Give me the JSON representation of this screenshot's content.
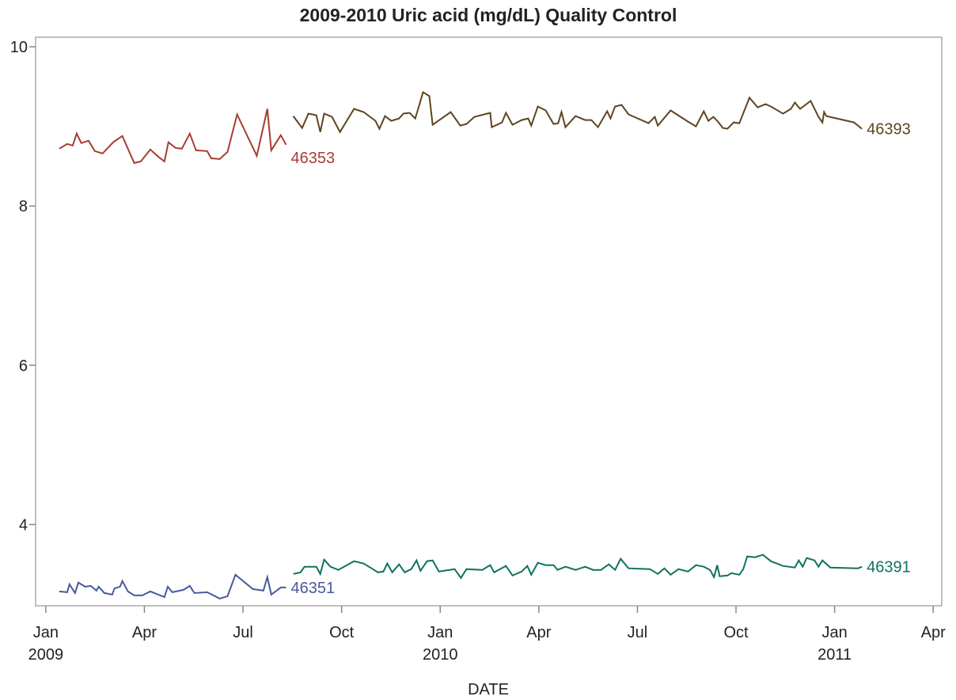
{
  "chart_data": {
    "type": "line",
    "title": "2009-2010 Uric acid (mg/dL) Quality Control",
    "x_label": "DATE",
    "xlim": [
      -0.31,
      27.26
    ],
    "ylim": [
      2.98,
      10.12
    ],
    "xticks": [
      {
        "value": 0,
        "label": "Jan",
        "year": "2009"
      },
      {
        "value": 3,
        "label": "Apr"
      },
      {
        "value": 6,
        "label": "Jul"
      },
      {
        "value": 9,
        "label": "Oct"
      },
      {
        "value": 12,
        "label": "Jan",
        "year": "2010"
      },
      {
        "value": 15,
        "label": "Apr"
      },
      {
        "value": 18,
        "label": "Jul"
      },
      {
        "value": 21,
        "label": "Oct"
      },
      {
        "value": 24,
        "label": "Jan",
        "year": "2011"
      },
      {
        "value": 27,
        "label": "Apr"
      }
    ],
    "yticks": [
      4,
      6,
      8,
      10
    ],
    "series": [
      {
        "name": "46353",
        "color": "#a63d33",
        "x": [
          0.41,
          0.65,
          0.82,
          0.94,
          1.08,
          1.3,
          1.49,
          1.73,
          2.05,
          2.33,
          2.69,
          2.89,
          3.18,
          3.42,
          3.61,
          3.73,
          3.95,
          4.14,
          4.38,
          4.57,
          4.91,
          5.03,
          5.29,
          5.53,
          5.82,
          6.42,
          6.74,
          6.86,
          7.15,
          7.31
        ],
        "values": [
          8.72,
          8.78,
          8.76,
          8.91,
          8.79,
          8.82,
          8.69,
          8.66,
          8.8,
          8.88,
          8.54,
          8.56,
          8.71,
          8.62,
          8.56,
          8.8,
          8.73,
          8.72,
          8.91,
          8.7,
          8.69,
          8.6,
          8.59,
          8.68,
          9.15,
          8.63,
          9.22,
          8.7,
          8.89,
          8.77
        ]
      },
      {
        "name": "46351",
        "color": "#4a5a9c",
        "x": [
          0.41,
          0.65,
          0.72,
          0.89,
          0.99,
          1.2,
          1.37,
          1.54,
          1.61,
          1.78,
          2.02,
          2.09,
          2.26,
          2.33,
          2.5,
          2.69,
          2.94,
          3.18,
          3.42,
          3.61,
          3.71,
          3.85,
          4.19,
          4.38,
          4.52,
          4.91,
          5.29,
          5.53,
          5.77,
          6.3,
          6.62,
          6.74,
          6.86,
          7.15,
          7.31
        ],
        "values": [
          3.16,
          3.15,
          3.25,
          3.14,
          3.27,
          3.22,
          3.23,
          3.17,
          3.22,
          3.14,
          3.12,
          3.2,
          3.22,
          3.29,
          3.16,
          3.11,
          3.11,
          3.16,
          3.12,
          3.09,
          3.22,
          3.15,
          3.18,
          3.23,
          3.14,
          3.15,
          3.07,
          3.1,
          3.37,
          3.19,
          3.17,
          3.34,
          3.12,
          3.21,
          3.21
        ]
      },
      {
        "name": "46393",
        "color": "#5e4520",
        "x": [
          7.53,
          7.8,
          7.99,
          8.23,
          8.35,
          8.47,
          8.71,
          8.95,
          9.38,
          9.67,
          10.03,
          10.15,
          10.32,
          10.51,
          10.75,
          10.88,
          11.07,
          11.24,
          11.48,
          11.67,
          11.77,
          12.32,
          12.61,
          12.8,
          13.04,
          13.52,
          13.57,
          13.88,
          14.0,
          14.2,
          14.48,
          14.68,
          14.77,
          14.97,
          15.21,
          15.45,
          15.59,
          15.69,
          15.81,
          16.12,
          16.41,
          16.6,
          16.8,
          17.08,
          17.18,
          17.32,
          17.52,
          17.73,
          18.34,
          18.53,
          18.62,
          19.01,
          19.54,
          19.78,
          20.02,
          20.16,
          20.31,
          20.45,
          20.6,
          20.74,
          20.93,
          21.1,
          21.41,
          21.66,
          21.9,
          22.06,
          22.43,
          22.67,
          22.79,
          22.95,
          23.27,
          23.51,
          23.63,
          23.68,
          23.75,
          24.59,
          24.83
        ],
        "values": [
          9.13,
          8.98,
          9.16,
          9.14,
          8.93,
          9.16,
          9.12,
          8.93,
          9.22,
          9.18,
          9.07,
          8.97,
          9.13,
          9.07,
          9.1,
          9.16,
          9.17,
          9.1,
          9.43,
          9.38,
          9.02,
          9.18,
          9.01,
          9.03,
          9.12,
          9.17,
          8.99,
          9.05,
          9.17,
          9.02,
          9.08,
          9.1,
          9.01,
          9.25,
          9.2,
          9.03,
          9.04,
          9.18,
          8.99,
          9.13,
          9.08,
          9.08,
          8.99,
          9.19,
          9.1,
          9.25,
          9.27,
          9.15,
          9.04,
          9.12,
          9.01,
          9.2,
          9.06,
          9.0,
          9.19,
          9.07,
          9.12,
          9.06,
          8.98,
          8.97,
          9.05,
          9.04,
          9.36,
          9.24,
          9.28,
          9.25,
          9.16,
          9.22,
          9.3,
          9.22,
          9.32,
          9.12,
          9.05,
          9.18,
          9.13,
          9.05,
          8.97
        ]
      },
      {
        "name": "46391",
        "color": "#10725f",
        "x": [
          7.53,
          7.75,
          7.87,
          8.23,
          8.35,
          8.47,
          8.66,
          8.9,
          9.38,
          9.67,
          9.91,
          10.11,
          10.27,
          10.39,
          10.54,
          10.75,
          10.92,
          11.12,
          11.28,
          11.4,
          11.6,
          11.77,
          11.96,
          12.44,
          12.63,
          12.8,
          13.28,
          13.52,
          13.64,
          14.0,
          14.2,
          14.48,
          14.65,
          14.77,
          14.97,
          15.21,
          15.45,
          15.57,
          15.81,
          16.12,
          16.41,
          16.65,
          16.89,
          17.13,
          17.32,
          17.49,
          17.73,
          18.38,
          18.62,
          18.82,
          19.01,
          19.25,
          19.54,
          19.78,
          20.02,
          20.21,
          20.33,
          20.43,
          20.5,
          20.74,
          20.86,
          21.1,
          21.22,
          21.34,
          21.58,
          21.82,
          22.06,
          22.43,
          22.79,
          22.91,
          23.03,
          23.15,
          23.39,
          23.51,
          23.63,
          23.87,
          24.71,
          24.83
        ],
        "values": [
          3.38,
          3.4,
          3.47,
          3.47,
          3.38,
          3.56,
          3.47,
          3.43,
          3.54,
          3.51,
          3.45,
          3.4,
          3.41,
          3.51,
          3.4,
          3.5,
          3.4,
          3.44,
          3.55,
          3.42,
          3.54,
          3.55,
          3.41,
          3.44,
          3.33,
          3.44,
          3.43,
          3.49,
          3.4,
          3.48,
          3.36,
          3.41,
          3.48,
          3.37,
          3.52,
          3.49,
          3.49,
          3.43,
          3.47,
          3.43,
          3.47,
          3.43,
          3.43,
          3.5,
          3.43,
          3.57,
          3.45,
          3.44,
          3.38,
          3.45,
          3.37,
          3.44,
          3.41,
          3.49,
          3.47,
          3.43,
          3.34,
          3.49,
          3.35,
          3.36,
          3.39,
          3.37,
          3.44,
          3.6,
          3.59,
          3.62,
          3.54,
          3.48,
          3.46,
          3.55,
          3.47,
          3.58,
          3.55,
          3.47,
          3.55,
          3.46,
          3.45,
          3.47
        ]
      }
    ]
  }
}
